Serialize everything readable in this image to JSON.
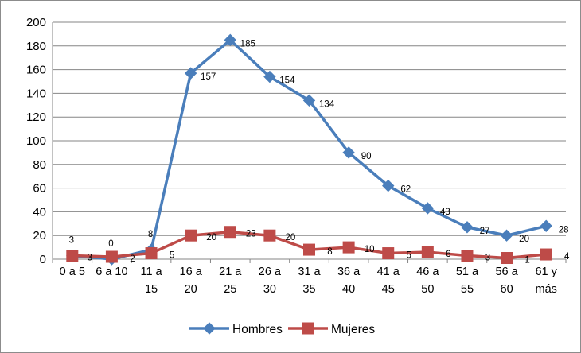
{
  "chart_data": {
    "type": "line",
    "title": "",
    "xlabel": "",
    "ylabel": "",
    "ylim": [
      0,
      200
    ],
    "yticks": [
      "0",
      "20",
      "40",
      "60",
      "80",
      "100",
      "120",
      "140",
      "160",
      "180",
      "200"
    ],
    "grid": true,
    "legend_position": "bottom",
    "categories": [
      [
        "0 a 5"
      ],
      [
        "6 a 10"
      ],
      [
        "11 a",
        "15"
      ],
      [
        "16 a",
        "20"
      ],
      [
        "21 a",
        "25"
      ],
      [
        "26 a",
        "30"
      ],
      [
        "31 a",
        "35"
      ],
      [
        "36 a",
        "40"
      ],
      [
        "41 a",
        "45"
      ],
      [
        "46 a",
        "50"
      ],
      [
        "51 a",
        "55"
      ],
      [
        "56 a",
        "60"
      ],
      [
        "61 y",
        "más"
      ]
    ],
    "series": [
      {
        "name": "Hombres",
        "color": "#4a7ebb",
        "marker": "diamond",
        "values": [
          3,
          0,
          8,
          157,
          185,
          154,
          134,
          90,
          62,
          43,
          27,
          20,
          28
        ],
        "plotted_values": [
          3,
          0,
          8,
          157,
          185,
          154,
          134,
          90,
          62,
          43,
          27,
          20,
          28
        ]
      },
      {
        "name": "Mujeres",
        "color": "#be4b48",
        "marker": "square",
        "values": [
          3,
          2,
          5,
          20,
          23,
          20,
          8,
          10,
          5,
          6,
          3,
          1,
          4
        ],
        "plotted_values": [
          3,
          2,
          5,
          20,
          23,
          20,
          8,
          10,
          5,
          6,
          3,
          1,
          4
        ]
      }
    ]
  }
}
